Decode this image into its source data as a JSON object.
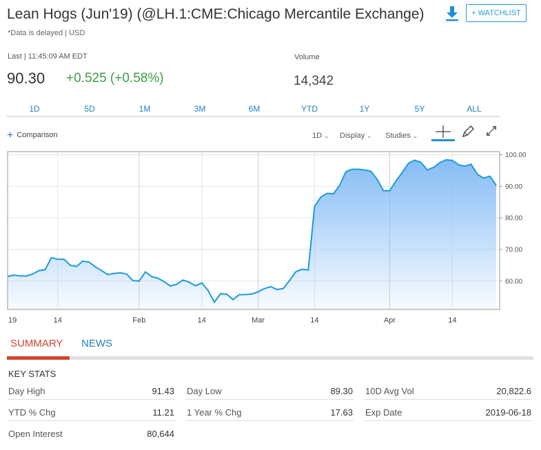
{
  "header": {
    "title": "Lean Hogs (Jun'19) (@LH.1:CME:Chicago Mercantile Exchange)",
    "note": "*Data is delayed | USD",
    "watchlist_label": "+ WATCHLIST",
    "download_icon": "download-icon"
  },
  "quote": {
    "last_label": "Last | 11:45:09 AM EDT",
    "price": "90.30",
    "change": "+0.525 (+0.58%)",
    "volume_label": "Volume",
    "volume": "14,342",
    "colors": {
      "positive": "#3c9e42",
      "link": "#1f7fc1",
      "accent": "#d0452b"
    }
  },
  "ranges": [
    "1D",
    "5D",
    "1M",
    "3M",
    "6M",
    "YTD",
    "1Y",
    "5Y",
    "ALL"
  ],
  "toolbar": {
    "comparison": "Comparison",
    "interval": "1D",
    "display": "Display",
    "studies": "Studies",
    "icons": [
      "crosshair-icon",
      "pencil-icon",
      "expand-icon"
    ]
  },
  "chart_data": {
    "type": "area",
    "x_tick_labels": [
      "19",
      "14",
      "Feb",
      "14",
      "Mar",
      "14",
      "Apr",
      "14"
    ],
    "y_tick_labels": [
      "100.00",
      "90.00",
      "80.00",
      "70.00",
      "60.00"
    ],
    "ylim": [
      51,
      101
    ],
    "grid": true,
    "line_color": "#1a9be0",
    "fill_color": "#7fb9f5",
    "series": [
      {
        "values": [
          61.4,
          61.9,
          61.6,
          61.6,
          62.2,
          63.3,
          63.6,
          67.4,
          66.9,
          66.9,
          65.0,
          64.6,
          66.3,
          66.0,
          64.5,
          63.3,
          62.0,
          62.4,
          62.6,
          62.2,
          60.1,
          60.0,
          62.9,
          61.4,
          60.9,
          59.8,
          58.4,
          59.0,
          60.3,
          59.6,
          58.5,
          59.4,
          57.0,
          53.3,
          56.0,
          55.8,
          54.1,
          55.7,
          55.7,
          55.9,
          56.6,
          57.6,
          58.2,
          57.3,
          57.6,
          60.1,
          62.9,
          63.7,
          63.5,
          83.6,
          86.6,
          87.8,
          87.6,
          90.3,
          94.6,
          95.4,
          95.4,
          95.2,
          94.8,
          92.2,
          88.6,
          88.6,
          91.7,
          94.4,
          97.3,
          98.3,
          97.6,
          95.2,
          96.0,
          97.5,
          98.4,
          98.2,
          96.8,
          96.4,
          97.0,
          93.8,
          92.6,
          93.2,
          90.3
        ]
      }
    ]
  },
  "tabs": [
    "SUMMARY",
    "NEWS"
  ],
  "key_stats": {
    "title": "KEY STATS",
    "items": [
      {
        "label": "Day High",
        "value": "91.43"
      },
      {
        "label": "Day Low",
        "value": "89.30"
      },
      {
        "label": "10D Avg Vol",
        "value": "20,822.6"
      },
      {
        "label": "YTD % Chg",
        "value": "11.21"
      },
      {
        "label": "1 Year % Chg",
        "value": "17.63"
      },
      {
        "label": "Exp Date",
        "value": "2019-06-18"
      },
      {
        "label": "Open Interest",
        "value": "80,644"
      }
    ]
  }
}
